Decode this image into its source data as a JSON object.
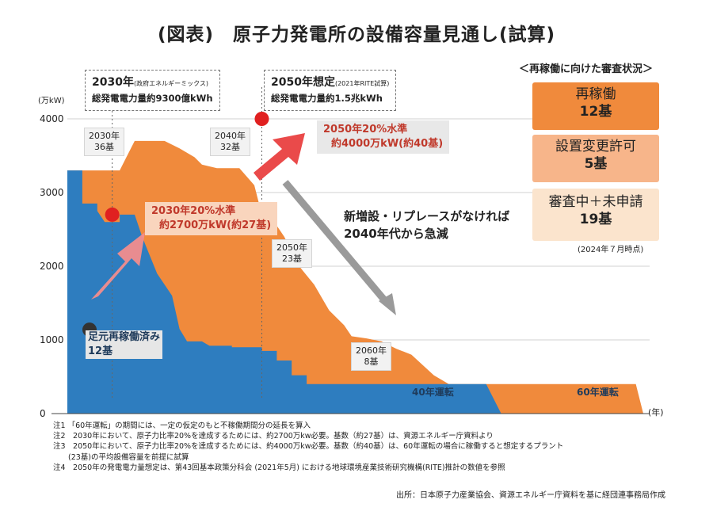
{
  "title": "(図表)　原子力発電所の設備容量見通し(試算)",
  "chart_data": {
    "type": "area",
    "ylabel": "(万kW)",
    "xlabel": "(年)",
    "ylim": [
      0,
      4000
    ],
    "yticks": [
      "0",
      "1000",
      "2000",
      "3000",
      "4000"
    ],
    "x_range_description": "2024年〜2100年前後",
    "series": [
      {
        "name": "40年運転",
        "color": "#2e7dbf",
        "points": [
          [
            2024,
            3300
          ],
          [
            2026,
            3300
          ],
          [
            2026,
            2850
          ],
          [
            2028,
            2850
          ],
          [
            2028,
            2750
          ],
          [
            2029,
            2600
          ],
          [
            2031,
            2600
          ],
          [
            2031,
            2700
          ],
          [
            2033,
            2700
          ],
          [
            2034,
            2400
          ],
          [
            2036,
            1900
          ],
          [
            2038,
            1600
          ],
          [
            2039,
            1150
          ],
          [
            2040,
            980
          ],
          [
            2042,
            980
          ],
          [
            2043,
            920
          ],
          [
            2046,
            920
          ],
          [
            2046,
            900
          ],
          [
            2050,
            900
          ],
          [
            2050,
            850
          ],
          [
            2052,
            850
          ],
          [
            2052,
            720
          ],
          [
            2054,
            720
          ],
          [
            2054,
            520
          ],
          [
            2056,
            520
          ],
          [
            2056,
            400
          ],
          [
            2070,
            400
          ],
          [
            2070,
            400
          ],
          [
            2080,
            400
          ],
          [
            2082,
            0
          ]
        ]
      },
      {
        "name": "60年運転",
        "color": "#f08a3c",
        "points": [
          [
            2024,
            3300
          ],
          [
            2029,
            3300
          ],
          [
            2029,
            3300
          ],
          [
            2031,
            3300
          ],
          [
            2032,
            3500
          ],
          [
            2033,
            3700
          ],
          [
            2037,
            3700
          ],
          [
            2039,
            3600
          ],
          [
            2041,
            3480
          ],
          [
            2042,
            3380
          ],
          [
            2044,
            3330
          ],
          [
            2047,
            3330
          ],
          [
            2049,
            3100
          ],
          [
            2050,
            2700
          ],
          [
            2051,
            2700
          ],
          [
            2053,
            2400
          ],
          [
            2055,
            2000
          ],
          [
            2057,
            1750
          ],
          [
            2059,
            1400
          ],
          [
            2061,
            1200
          ],
          [
            2062,
            1050
          ],
          [
            2064,
            1020
          ],
          [
            2066,
            980
          ],
          [
            2068,
            880
          ],
          [
            2070,
            800
          ],
          [
            2073,
            520
          ],
          [
            2075,
            400
          ],
          [
            2100,
            400
          ],
          [
            2101,
            0
          ]
        ]
      }
    ],
    "annotations": [
      {
        "x": 2030,
        "year_text": "2030年",
        "count_text": "36基"
      },
      {
        "x": 2040,
        "year_text": "2040年",
        "count_text": "32基"
      },
      {
        "x": 2050,
        "year_text": "2050年",
        "count_text": "23基"
      },
      {
        "x": 2060,
        "year_text": "2060年",
        "count_text": "8基"
      }
    ],
    "targets": [
      {
        "x": 2030,
        "value": 2700,
        "label1": "2030年20%水準",
        "label2": "約2700万kW(約27基)"
      },
      {
        "x": 2050,
        "value": 4000,
        "label1": "2050年20%水準",
        "label2": "約4000万kW(約40基)"
      }
    ],
    "current": {
      "value": 1300,
      "label1": "足元再稼働済み",
      "label2": "12基"
    },
    "series_labels": [
      "40年運転",
      "60年運転"
    ]
  },
  "boxes": {
    "b2030": {
      "heading": "2030年",
      "sub": "(政府エネルギーミックス)",
      "line": "総発電電力量約9300億kWh"
    },
    "b2050": {
      "heading": "2050年想定",
      "sub": "(2021年RITE試算)",
      "line": "総発電電力量約1.5兆kWh"
    }
  },
  "decline_text": [
    "新増設・リプレースがなければ",
    "2040年代から急減"
  ],
  "panel": {
    "title": "＜再稼働に向けた審査状況＞",
    "items": [
      {
        "label": "再稼働",
        "count": "12基",
        "color": "#f08a3c"
      },
      {
        "label": "設置変更許可",
        "count": "5基",
        "color": "#f7b58a"
      },
      {
        "label": "審査中＋未申請",
        "count": "19基",
        "color": "#fbe4cd"
      }
    ],
    "note": "(2024年７月時点)"
  },
  "notes": [
    "注1 「60年運転」の期間には、一定の仮定のもと不稼働期間分の延長を算入",
    "注2　2030年において、原子力比率20%を達成するためには、約2700万kw必要。基数（約27基）は、資源エネルギー庁資料より",
    "注3　2050年において、原子力比率20%を達成するためには、約4000万kw必要。基数（約40基）は、60年運転の場合に稼働すると想定するプラント",
    "　　(23基)の平均設備容量を前提に試算",
    "注4　2050年の発電電力量想定は、第43回基本政策分科会 (2021年5月) における地球環境産業技術研究機構(RITE)推計の数値を参照"
  ],
  "source": "出所：日本原子力産業協会、資源エネルギー庁資料を基に経団連事務局作成"
}
